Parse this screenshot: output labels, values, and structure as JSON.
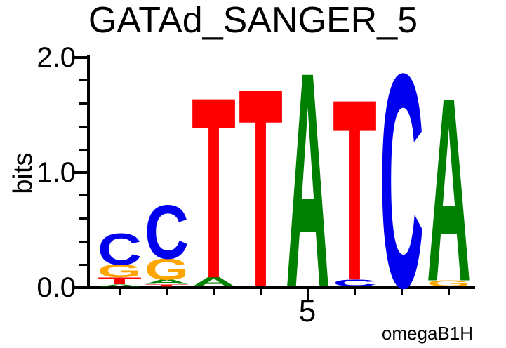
{
  "title": "GATAd_SANGER_5",
  "watermark": "omegaB1H",
  "chart_data": {
    "type": "sequence-logo",
    "title": "GATAd_SANGER_5",
    "xlabel": "",
    "ylabel": "bits",
    "ylim": [
      0,
      2
    ],
    "ytick_values": [
      0,
      1,
      2
    ],
    "ytick_labels": [
      "0.0",
      "1.0",
      "2.0"
    ],
    "y_minor_tick_step": 0.2,
    "num_positions": 8,
    "xtick_labeled": {
      "position": 5,
      "label": "5"
    },
    "consensus": "ccTTATCA",
    "watermark": "omegaB1H",
    "base_colors": {
      "A": "#008000",
      "C": "#0000EE",
      "G": "#FFA500",
      "T": "#FF0000"
    },
    "positions": [
      {
        "position": 1,
        "stack": [
          {
            "base": "A",
            "bits": 0.02
          },
          {
            "base": "T",
            "bits": 0.06
          },
          {
            "base": "G",
            "bits": 0.11
          },
          {
            "base": "C",
            "bits": 0.27
          }
        ]
      },
      {
        "position": 2,
        "stack": [
          {
            "base": "T",
            "bits": 0.02
          },
          {
            "base": "A",
            "bits": 0.04
          },
          {
            "base": "G",
            "bits": 0.18
          },
          {
            "base": "C",
            "bits": 0.46
          }
        ]
      },
      {
        "position": 3,
        "stack": [
          {
            "base": "A",
            "bits": 0.08
          },
          {
            "base": "T",
            "bits": 1.55
          }
        ]
      },
      {
        "position": 4,
        "stack": [
          {
            "base": "T",
            "bits": 1.7
          }
        ]
      },
      {
        "position": 5,
        "stack": [
          {
            "base": "A",
            "bits": 1.84
          }
        ]
      },
      {
        "position": 6,
        "stack": [
          {
            "base": "C",
            "bits": 0.06
          },
          {
            "base": "T",
            "bits": 1.55
          }
        ]
      },
      {
        "position": 7,
        "stack": [
          {
            "base": "C",
            "bits": 1.83
          }
        ]
      },
      {
        "position": 8,
        "stack": [
          {
            "base": "G",
            "bits": 0.05
          },
          {
            "base": "A",
            "bits": 1.57
          }
        ]
      }
    ]
  }
}
